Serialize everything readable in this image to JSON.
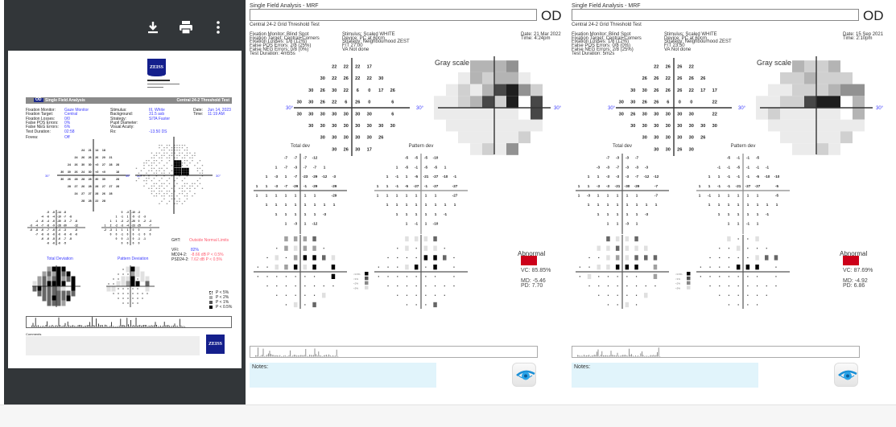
{
  "viewer": {
    "toolbar": {
      "download_icon": "download-icon",
      "print_icon": "print-icon",
      "more_icon": "more-vert-icon"
    },
    "report": {
      "logo": "ZEISS",
      "eye": "OD",
      "title": "Single Field Analysis",
      "test": "Central 24-2 Threshold Test",
      "fields_left": [
        {
          "label": "Fixation Monitor:",
          "value": "Gaze Monitor"
        },
        {
          "label": "Fixation Target:",
          "value": "Central"
        },
        {
          "label": "Fixation Losses:",
          "value": "0/0"
        },
        {
          "label": "False POS Errors:",
          "value": "0%"
        },
        {
          "label": "False NEG Errors:",
          "value": "6%"
        },
        {
          "label": "Test Duration:",
          "value": "02:58"
        }
      ],
      "fovea": {
        "label": "Fovea:",
        "value": "Off"
      },
      "fields_mid": [
        {
          "label": "Stimulus:",
          "value": "III, White"
        },
        {
          "label": "Background:",
          "value": "31.5 asb"
        },
        {
          "label": "Strategy:",
          "value": "SITA Faster"
        },
        {
          "label": "Pupil Diameter:",
          "value": ""
        },
        {
          "label": "Visual Acuity:",
          "value": ""
        },
        {
          "label": "Rx:",
          "value": "-13.50 DS"
        }
      ],
      "fields_right": [
        {
          "label": "Date:",
          "value": "Jun 14, 2023"
        },
        {
          "label": "Time:",
          "value": "11:19 AM"
        }
      ],
      "axis_label": "30°",
      "threshold": [
        [
          24,
          21,
          14,
          18
        ],
        [
          24,
          26,
          26,
          26,
          20,
          21
        ],
        [
          24,
          26,
          30,
          30,
          "<0",
          27,
          28,
          28
        ],
        [
          30,
          30,
          26,
          24,
          30,
          "<0",
          "<0",
          null,
          18
        ],
        [
          30,
          26,
          28,
          28,
          28,
          30,
          30,
          null,
          28
        ],
        [
          28,
          27,
          26,
          28,
          28,
          27,
          27,
          28
        ],
        [
          24,
          27,
          27,
          28,
          26,
          28
        ],
        [
          28,
          28,
          22,
          28
        ]
      ],
      "total_dev": [
        [
          -5,
          -8,
          -14,
          -8
        ],
        [
          -4,
          -6,
          -4,
          -10,
          -7,
          -8
        ],
        [
          -4,
          -6,
          -4,
          -6,
          -30,
          -5,
          -7,
          -8
        ],
        [
          -3,
          -4,
          -7,
          -8,
          -9,
          -28,
          -30,
          null,
          -12
        ],
        [
          -6,
          -8,
          -6,
          -7,
          -6,
          -4,
          -3,
          null,
          -8
        ],
        [
          -7,
          -6,
          -6,
          -6,
          -6,
          -6,
          -6,
          -6
        ],
        [
          -6,
          -6,
          -8,
          -6,
          -7,
          -8
        ],
        [
          -6,
          -6,
          -6,
          -5
        ]
      ],
      "pattern_dev": [
        [
          0,
          -3,
          -10,
          -3
        ],
        [
          1,
          -1,
          1,
          -5,
          -2,
          -3
        ],
        [
          1,
          1,
          -3,
          -2,
          -26,
          0,
          -2,
          -3
        ],
        [
          1,
          2,
          -2,
          -3,
          -4,
          -23,
          -25,
          null,
          -7
        ],
        [
          -2,
          -3,
          1,
          1,
          1,
          0,
          0,
          null,
          -3
        ],
        [
          0,
          0,
          -1,
          0,
          0,
          -1,
          0,
          0
        ],
        [
          0,
          0,
          -1,
          0,
          -1,
          -1
        ],
        [
          0,
          0,
          0,
          0
        ]
      ],
      "total_dev_label": "Total Deviation",
      "pattern_dev_label": "Pattern Deviation",
      "ght": {
        "label": "GHT:",
        "value": "Outside Normal Limits"
      },
      "vfi": {
        "label": "VFI:",
        "value": "82%"
      },
      "md": {
        "label": "MD24-2:",
        "value": "-8.66 dB P < 0.5%"
      },
      "psd": {
        "label": "PSD24-2:",
        "value": "7.62 dB P < 0.5%"
      },
      "legend": [
        "P < 5%",
        "P < 2%",
        "P < 1%",
        "P < 0.5%"
      ],
      "comments_label": "Comments"
    }
  },
  "reports": [
    {
      "header": "Single Field Analysis - MRF",
      "eye": "OD",
      "test": "Central 24-2 Grid Threshold Test",
      "col1": [
        "Fixation Monitor: Blind Spot",
        "Fixation Target: Central+Corners",
        "Fixation Losses: 1/8 (12%)",
        "False POS Errors: 2/8 (25%)",
        "False NEG Errors: 0/8 (0%)",
        "Test Duration: 4m55s"
      ],
      "col2": [
        "Stimulus: Scaled WHITE",
        "Device: PC at 60cm",
        "Strategy: Neighbourhood ZEST",
        "F/T 27.00",
        "VA Not done"
      ],
      "col3": [
        "Date: 21 Mar 2022",
        "Time: 4:24pm"
      ],
      "gray_label": "Gray scale",
      "axis_label": "30°",
      "total_label": "Total dev",
      "pattern_label": "Pattern dev",
      "threshold": [
        [
          22,
          22,
          22,
          17
        ],
        [
          30,
          22,
          26,
          22,
          22,
          30
        ],
        [
          30,
          26,
          30,
          22,
          6,
          0,
          17,
          26
        ],
        [
          30,
          30,
          26,
          22,
          6,
          26,
          0,
          null,
          6
        ],
        [
          30,
          30,
          30,
          30,
          30,
          30,
          30,
          null,
          6
        ],
        [
          30,
          30,
          30,
          30,
          30,
          30,
          30,
          30
        ],
        [
          30,
          30,
          30,
          30,
          30,
          26
        ],
        [
          30,
          26,
          30,
          17
        ]
      ],
      "total_dev": [
        [
          -7,
          -7,
          -7,
          -12
        ],
        [
          1,
          -7,
          -3,
          -7,
          -7,
          1
        ],
        [
          1,
          -3,
          1,
          -7,
          -23,
          -29,
          -12,
          -3
        ],
        [
          1,
          1,
          -3,
          -7,
          -29,
          -1,
          -29,
          null,
          -29
        ],
        [
          1,
          1,
          1,
          1,
          1,
          1,
          1,
          null,
          -29
        ],
        [
          1,
          1,
          1,
          1,
          1,
          1,
          1,
          1
        ],
        [
          1,
          1,
          1,
          1,
          1,
          -3
        ],
        [
          1,
          -3,
          1,
          -12
        ]
      ],
      "pattern_dev": [
        [
          -5,
          -5,
          -5,
          -10
        ],
        [
          1,
          -5,
          -1,
          -5,
          -5,
          1
        ],
        [
          1,
          -1,
          1,
          -5,
          -21,
          -27,
          -10,
          -1
        ],
        [
          1,
          1,
          -1,
          -5,
          -27,
          -1,
          -27,
          null,
          -27
        ],
        [
          1,
          1,
          1,
          1,
          1,
          1,
          1,
          null,
          -27
        ],
        [
          1,
          1,
          1,
          1,
          1,
          1,
          1,
          1
        ],
        [
          1,
          1,
          1,
          1,
          1,
          -1
        ],
        [
          1,
          -1,
          1,
          -10
        ]
      ],
      "total_prob": [
        [
          2,
          2,
          2,
          3
        ],
        [
          0,
          2,
          1,
          2,
          2,
          0
        ],
        [
          0,
          1,
          0,
          2,
          4,
          4,
          3,
          1
        ],
        [
          0,
          0,
          1,
          2,
          4,
          1,
          4,
          null,
          4
        ],
        [
          0,
          0,
          0,
          0,
          0,
          0,
          0,
          null,
          4
        ],
        [
          0,
          0,
          0,
          0,
          0,
          0,
          0,
          0
        ],
        [
          0,
          0,
          0,
          0,
          0,
          1
        ],
        [
          0,
          1,
          0,
          3
        ]
      ],
      "pattern_prob": [
        [
          1,
          1,
          1,
          3
        ],
        [
          0,
          1,
          0,
          1,
          1,
          0
        ],
        [
          0,
          0,
          0,
          0,
          4,
          4,
          3,
          0
        ],
        [
          0,
          0,
          0,
          1,
          4,
          0,
          4,
          null,
          0
        ],
        [
          0,
          0,
          0,
          0,
          0,
          0,
          0,
          null,
          0
        ],
        [
          0,
          0,
          0,
          0,
          0,
          0,
          0,
          0
        ],
        [
          0,
          0,
          0,
          0,
          0,
          0
        ],
        [
          0,
          0,
          0,
          3
        ]
      ],
      "prob_legend": [
        "<0.5%",
        "<1%",
        "<2%",
        "<5%"
      ],
      "status": "Abnormal",
      "status_color": "#cc0019",
      "vc": "VC: 85.85%",
      "md": "MD: -5.46",
      "pd": "PD: 7.70",
      "notes_label": "Notes:"
    },
    {
      "header": "Single Field Analysis - MRF",
      "eye": "OD",
      "test": "Central 24-2 Grid Threshold Test",
      "col1": [
        "Fixation Monitor: Blind Spot",
        "Fixation Target: Central+Corners",
        "Fixation Losses: 1/8 (12%)",
        "False POS Errors: 0/8 (0%)",
        "False NEG Errors: 2/8 (25%)",
        "Test Duration: 5m2s"
      ],
      "col2": [
        "Stimulus: Scaled WHITE",
        "Device: PC at 60cm",
        "Strategy: Neighbourhood ZEST",
        "F/T 23.50",
        "VA Not done"
      ],
      "col3": [
        "Date: 15 Sep 2021",
        "Time: 2:10pm"
      ],
      "gray_label": "Gray scale",
      "axis_label": "30°",
      "total_label": "Total dev",
      "pattern_label": "Pattern dev",
      "threshold": [
        [
          22,
          26,
          26,
          22
        ],
        [
          26,
          26,
          22,
          26,
          26,
          26
        ],
        [
          30,
          30,
          26,
          26,
          26,
          22,
          17,
          17
        ],
        [
          30,
          30,
          26,
          26,
          6,
          0,
          0,
          null,
          22
        ],
        [
          30,
          26,
          30,
          30,
          30,
          30,
          30,
          null,
          22
        ],
        [
          30,
          30,
          30,
          30,
          30,
          30,
          30,
          30
        ],
        [
          30,
          30,
          30,
          30,
          30,
          26
        ],
        [
          30,
          30,
          26,
          30
        ]
      ],
      "total_dev": [
        [
          -7,
          -3,
          -3,
          -7
        ],
        [
          -3,
          -3,
          -7,
          -3,
          -3,
          -3
        ],
        [
          1,
          1,
          -3,
          -3,
          -3,
          -7,
          -12,
          -12
        ],
        [
          1,
          1,
          -3,
          -3,
          -21,
          -30,
          -29,
          null,
          -7
        ],
        [
          1,
          -3,
          1,
          1,
          1,
          1,
          1,
          null,
          -7
        ],
        [
          1,
          1,
          1,
          1,
          1,
          1,
          1,
          1
        ],
        [
          1,
          1,
          1,
          1,
          1,
          -3
        ],
        [
          1,
          1,
          -3,
          1
        ]
      ],
      "pattern_dev": [
        [
          -5,
          -1,
          -1,
          -5
        ],
        [
          -1,
          -1,
          -5,
          -1,
          -1,
          -1
        ],
        [
          1,
          1,
          -1,
          -1,
          -1,
          -5,
          -10,
          -10
        ],
        [
          1,
          1,
          -1,
          -1,
          -21,
          -27,
          -27,
          null,
          -5
        ],
        [
          1,
          -1,
          1,
          1,
          1,
          1,
          1,
          null,
          -5
        ],
        [
          1,
          1,
          1,
          1,
          1,
          1,
          1,
          1
        ],
        [
          1,
          1,
          1,
          1,
          1,
          -1
        ],
        [
          1,
          1,
          -1,
          1
        ]
      ],
      "total_prob": [
        [
          3,
          1,
          1,
          3
        ],
        [
          1,
          1,
          3,
          1,
          1,
          1
        ],
        [
          0,
          0,
          1,
          2,
          1,
          3,
          3,
          3
        ],
        [
          0,
          0,
          1,
          1,
          4,
          4,
          4,
          null,
          2
        ],
        [
          0,
          1,
          0,
          0,
          0,
          0,
          0,
          null,
          2
        ],
        [
          0,
          0,
          0,
          0,
          0,
          0,
          0,
          0
        ],
        [
          0,
          0,
          0,
          0,
          0,
          1
        ],
        [
          0,
          0,
          1,
          0
        ]
      ],
      "pattern_prob": [
        [
          1,
          0,
          0,
          1
        ],
        [
          0,
          0,
          1,
          0,
          0,
          0
        ],
        [
          0,
          0,
          0,
          0,
          0,
          1,
          3,
          3
        ],
        [
          0,
          0,
          0,
          0,
          4,
          4,
          4,
          null,
          0
        ],
        [
          0,
          0,
          0,
          0,
          0,
          0,
          0,
          null,
          0
        ],
        [
          0,
          0,
          0,
          0,
          0,
          0,
          0,
          0
        ],
        [
          0,
          0,
          0,
          0,
          0,
          0
        ],
        [
          0,
          0,
          0,
          0
        ]
      ],
      "prob_legend": [
        "<0.5%",
        "<1%",
        "<2%",
        "<5%"
      ],
      "status": "Abnormal",
      "status_color": "#cc0019",
      "vc": "VC: 87.69%",
      "md": "MD: -4.92",
      "pd": "PD: 6.86",
      "notes_label": "Notes:"
    }
  ]
}
